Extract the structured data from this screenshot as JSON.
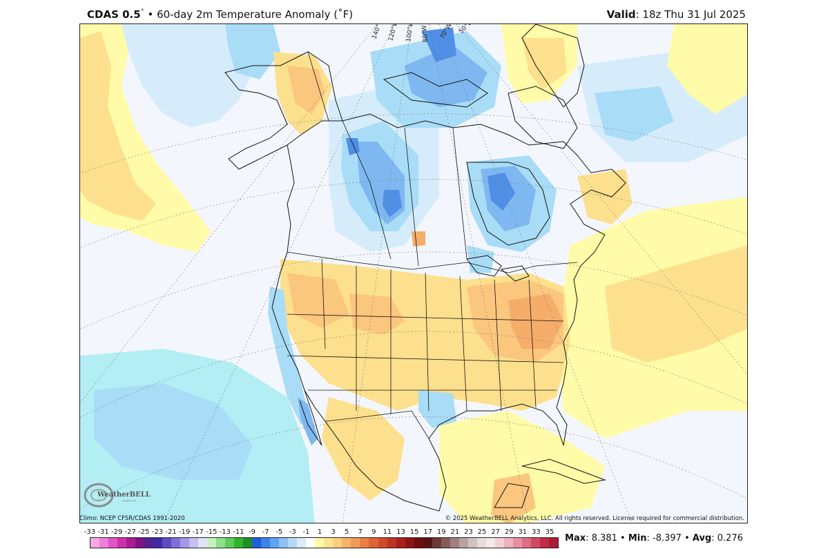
{
  "header": {
    "model": "CDAS 0.5",
    "degree_symbol": "°",
    "separator": "•",
    "description": "60-day 2m Temperature Anomaly (˚F)",
    "valid_label": "Valid",
    "valid_value": ": 18z Thu 31 Jul 2025"
  },
  "footer": {
    "climo": "Climo: NCEP CFSR/CDAS 1991-2020",
    "copyright": "© 2025 WeatherBELL Analytics, LLC. All rights reserved. License required for commercial distribution."
  },
  "logo": {
    "text": "WeatherBELL",
    "tagline": "Analytics LLC"
  },
  "stats": {
    "max_label": "Max",
    "max_value": ": 8.381",
    "min_label": "Min",
    "min_value": ": -8.397",
    "avg_label": "Avg",
    "avg_value": ": 0.276",
    "sep": " • "
  },
  "longitude_labels": [
    "140°W",
    "120°W",
    "100°W",
    "80°W",
    "70°W",
    "50°W"
  ],
  "colorbar": {
    "tick_labels": [
      "-33",
      "-31",
      "-29",
      "-27",
      "-25",
      "-23",
      "-21",
      "-19",
      "-17",
      "-15",
      "-13",
      "-11",
      "-9",
      "-7",
      "-5",
      "-3",
      "-1",
      "1",
      "3",
      "5",
      "7",
      "9",
      "11",
      "13",
      "15",
      "17",
      "19",
      "21",
      "23",
      "25",
      "27",
      "29",
      "31",
      "33",
      "35"
    ],
    "colors": [
      "#f7a6e6",
      "#ef7fd8",
      "#e254c8",
      "#cc30b0",
      "#ac1a94",
      "#7e1287",
      "#55208f",
      "#3f2aa4",
      "#5d4bc3",
      "#7f6fd8",
      "#a399e6",
      "#c6c0f0",
      "#e3e1f8",
      "#c3f2c0",
      "#8fe08b",
      "#5fcc5a",
      "#32b32d",
      "#1e8f24",
      "#1f5fd8",
      "#3b84ea",
      "#61a3f3",
      "#8cc0f7",
      "#b4d8fa",
      "#d8ecfc",
      "#ffffff",
      "#fffaa8",
      "#fde490",
      "#fbcd7e",
      "#f7b46a",
      "#f29a58",
      "#ea7f47",
      "#df6337",
      "#d14a2b",
      "#be3322",
      "#a6201b",
      "#8c1416",
      "#710c10",
      "#561515",
      "#6e3a36",
      "#875c58",
      "#a0807c",
      "#b9a19e",
      "#d2c3c1",
      "#e8dcda",
      "#f6e9ec",
      "#f4cfd6",
      "#eeb2be",
      "#e890a2",
      "#dd6d83",
      "#d04962",
      "#c12d46",
      "#ac1a33"
    ]
  },
  "map": {
    "colors": {
      "neutral": "#f3f7fd",
      "cool1": "#d6ecfb",
      "cool2": "#a9dcf6",
      "cool3": "#7fb8f0",
      "cool4": "#4f8fe6",
      "cool5": "#2f6fd8",
      "teal": "#b2eef3",
      "warm1": "#fffba8",
      "warm2": "#fde08d",
      "warm3": "#fbc67e",
      "warm4": "#f5ad6a",
      "warm5": "#ee9660",
      "line": "#111111"
    }
  }
}
